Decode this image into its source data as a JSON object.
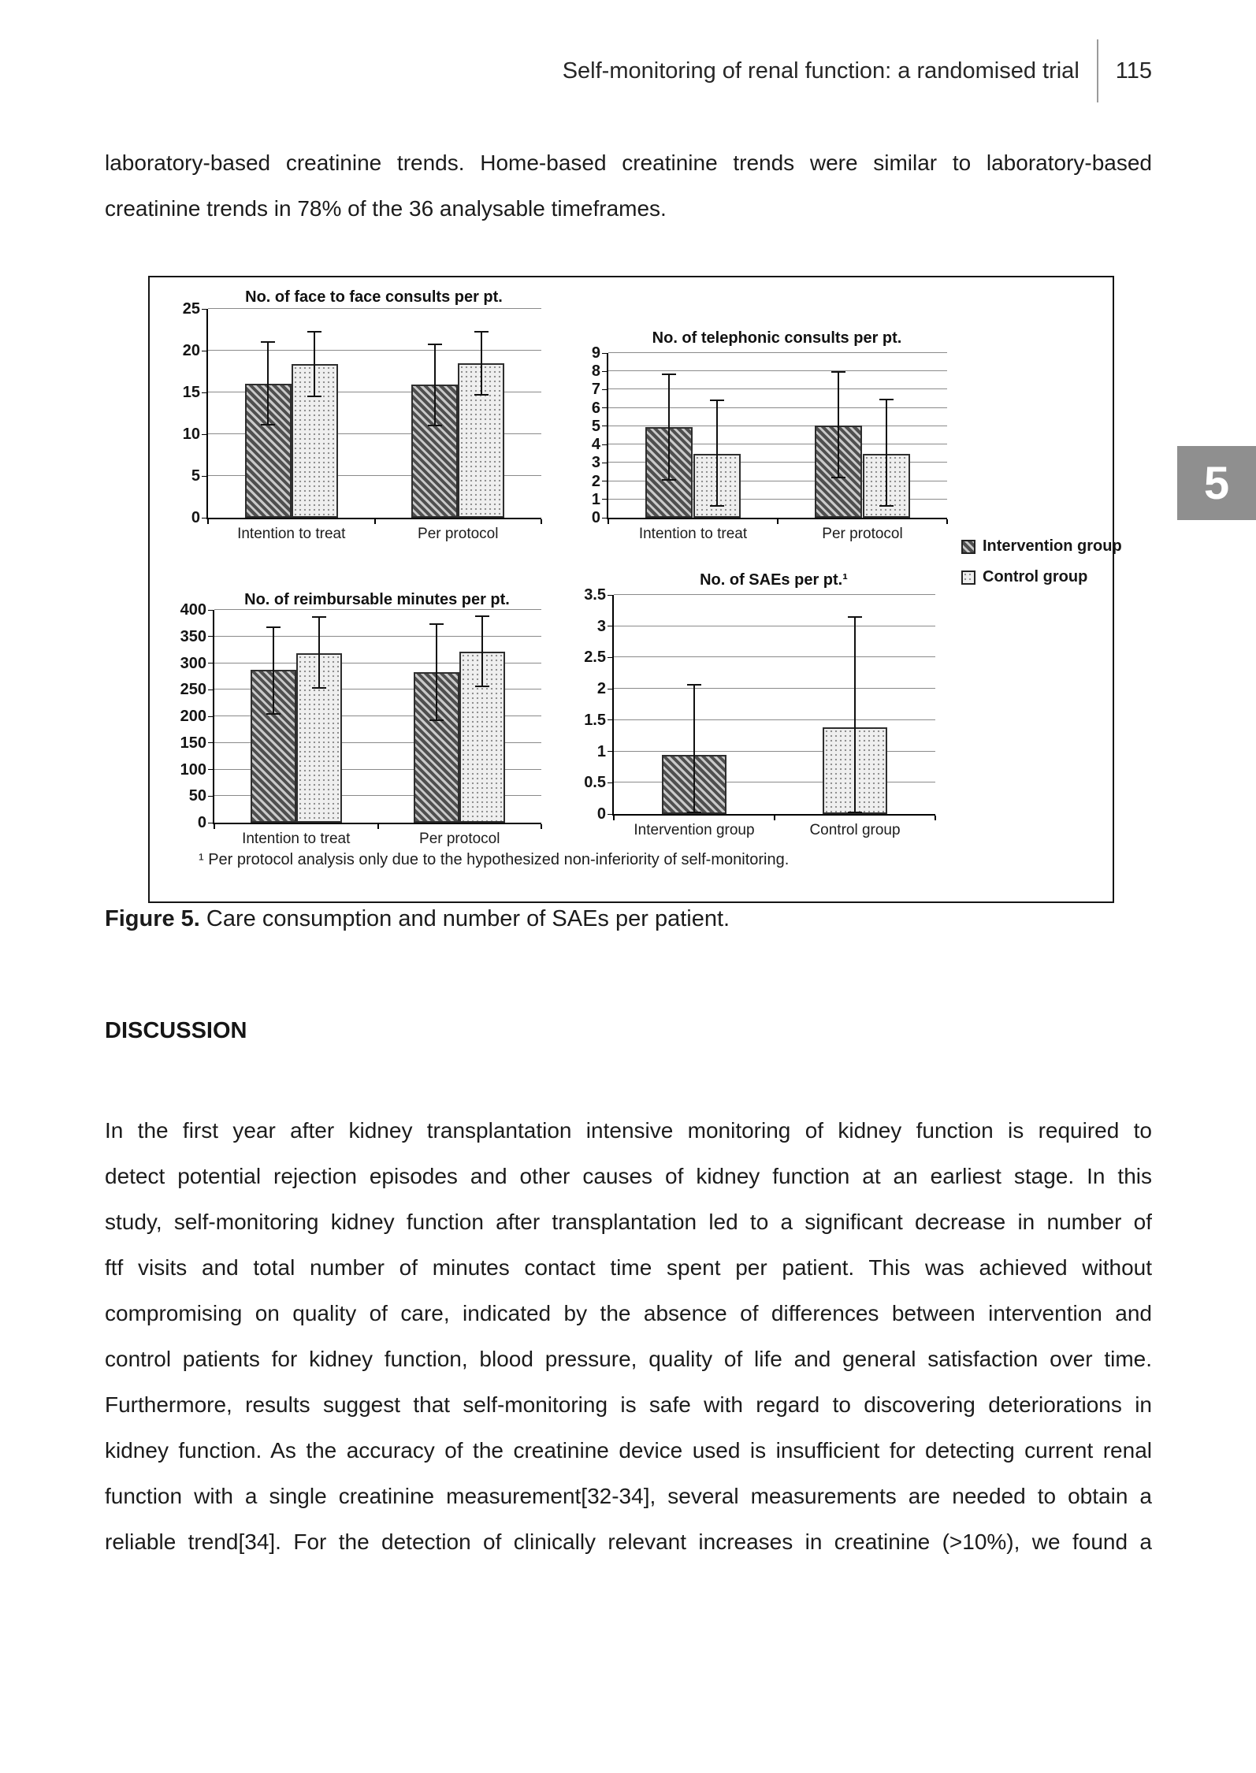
{
  "header": {
    "running_title": "Self-monitoring of renal function: a randomised trial",
    "page_number": "115"
  },
  "chapter_tab": "5",
  "intro": {
    "lines": [
      "laboratory-based creatinine trends. Home-based creatinine trends were similar to laboratory-based",
      "creatinine trends in 78% of the 36 analysable timeframes."
    ]
  },
  "figure": {
    "caption_label": "Figure 5.",
    "caption_text": "Care consumption and number of SAEs per patient.",
    "footnote": "¹ Per protocol analysis only due to the hypothesized non-inferiority of self-monitoring.",
    "legend": {
      "items": [
        {
          "label": "Intervention group",
          "pattern": "hatch",
          "icon": "hatched-square-icon"
        },
        {
          "label": "Control group",
          "pattern": "dots",
          "icon": "dotted-square-icon"
        }
      ]
    }
  },
  "discussion": {
    "heading": "DISCUSSION",
    "lines": [
      "In the first year after kidney transplantation intensive monitoring of kidney function is required to",
      "detect potential rejection episodes and other causes of kidney function at an earliest stage. In this",
      "study, self-monitoring kidney function after transplantation led to a significant decrease in number of",
      "ftf visits and total number of minutes contact time spent per patient. This was achieved without",
      "compromising on quality of care, indicated by the absence of differences between intervention and",
      "control patients for kidney function, blood pressure, quality of life and general satisfaction over time.",
      "Furthermore, results suggest that self-monitoring is safe with regard to discovering deteriorations in",
      "kidney function. As the accuracy of the creatinine device used is insufficient for detecting current renal",
      "function with a single creatinine measurement[32-34], several measurements are needed to obtain a",
      "reliable trend[34]. For the detection of clinically relevant increases in creatinine (>10%), we found a"
    ]
  },
  "chart_data": [
    {
      "type": "bar",
      "title": "No. of face to face consults per pt.",
      "categories": [
        "Intention to treat",
        "Per protocol"
      ],
      "series": [
        {
          "name": "Intervention group",
          "values": [
            16.0,
            15.9
          ],
          "error_low": [
            11.1,
            11.0
          ],
          "error_high": [
            21.0,
            20.8
          ]
        },
        {
          "name": "Control group",
          "values": [
            18.4,
            18.5
          ],
          "error_low": [
            14.5,
            14.7
          ],
          "error_high": [
            22.3,
            22.3
          ]
        }
      ],
      "ylim": [
        0,
        25
      ],
      "ytick_step": 5,
      "grid": true,
      "legend_position": "outside-right"
    },
    {
      "type": "bar",
      "title": "No. of telephonic consults per pt.",
      "categories": [
        "Intention to treat",
        "Per protocol"
      ],
      "series": [
        {
          "name": "Intervention group",
          "values": [
            4.95,
            5.05
          ],
          "error_low": [
            2.05,
            2.2
          ],
          "error_high": [
            7.85,
            7.95
          ]
        },
        {
          "name": "Control group",
          "values": [
            3.5,
            3.5
          ],
          "error_low": [
            0.65,
            0.65
          ],
          "error_high": [
            6.4,
            6.45
          ]
        }
      ],
      "ylim": [
        0,
        9
      ],
      "ytick_step": 1,
      "grid": true,
      "legend_position": "outside-right"
    },
    {
      "type": "bar",
      "title": "No. of reimbursable minutes per pt.",
      "categories": [
        "Intention to treat",
        "Per protocol"
      ],
      "series": [
        {
          "name": "Intervention group",
          "values": [
            287,
            283
          ],
          "error_low": [
            204,
            192
          ],
          "error_high": [
            368,
            374
          ]
        },
        {
          "name": "Control group",
          "values": [
            319,
            322
          ],
          "error_low": [
            253,
            257
          ],
          "error_high": [
            387,
            388
          ]
        }
      ],
      "ylim": [
        0,
        400
      ],
      "ytick_step": 50,
      "grid": true,
      "legend_position": "outside-right"
    },
    {
      "type": "bar",
      "title": "No. of SAEs per pt.¹",
      "categories": [
        "Intervention group",
        "Control group"
      ],
      "values": [
        0.94,
        1.38
      ],
      "patterns": [
        "hatch",
        "dots"
      ],
      "error_low": [
        0.03,
        0.03
      ],
      "error_high": [
        2.07,
        3.15
      ],
      "ylim": [
        0,
        3.5
      ],
      "ytick_step": 0.5,
      "grid": true,
      "legend_position": "outside-right"
    }
  ],
  "colors": {
    "page_bg": "#ffffff",
    "text": "#1b1b1b",
    "grid": "#8a8a8a",
    "axis": "#000000",
    "tab_bg": "#8f8f8f",
    "tab_text": "#ffffff",
    "hatch_dark": "#4f4f4f",
    "dots_bg": "#efefef"
  }
}
